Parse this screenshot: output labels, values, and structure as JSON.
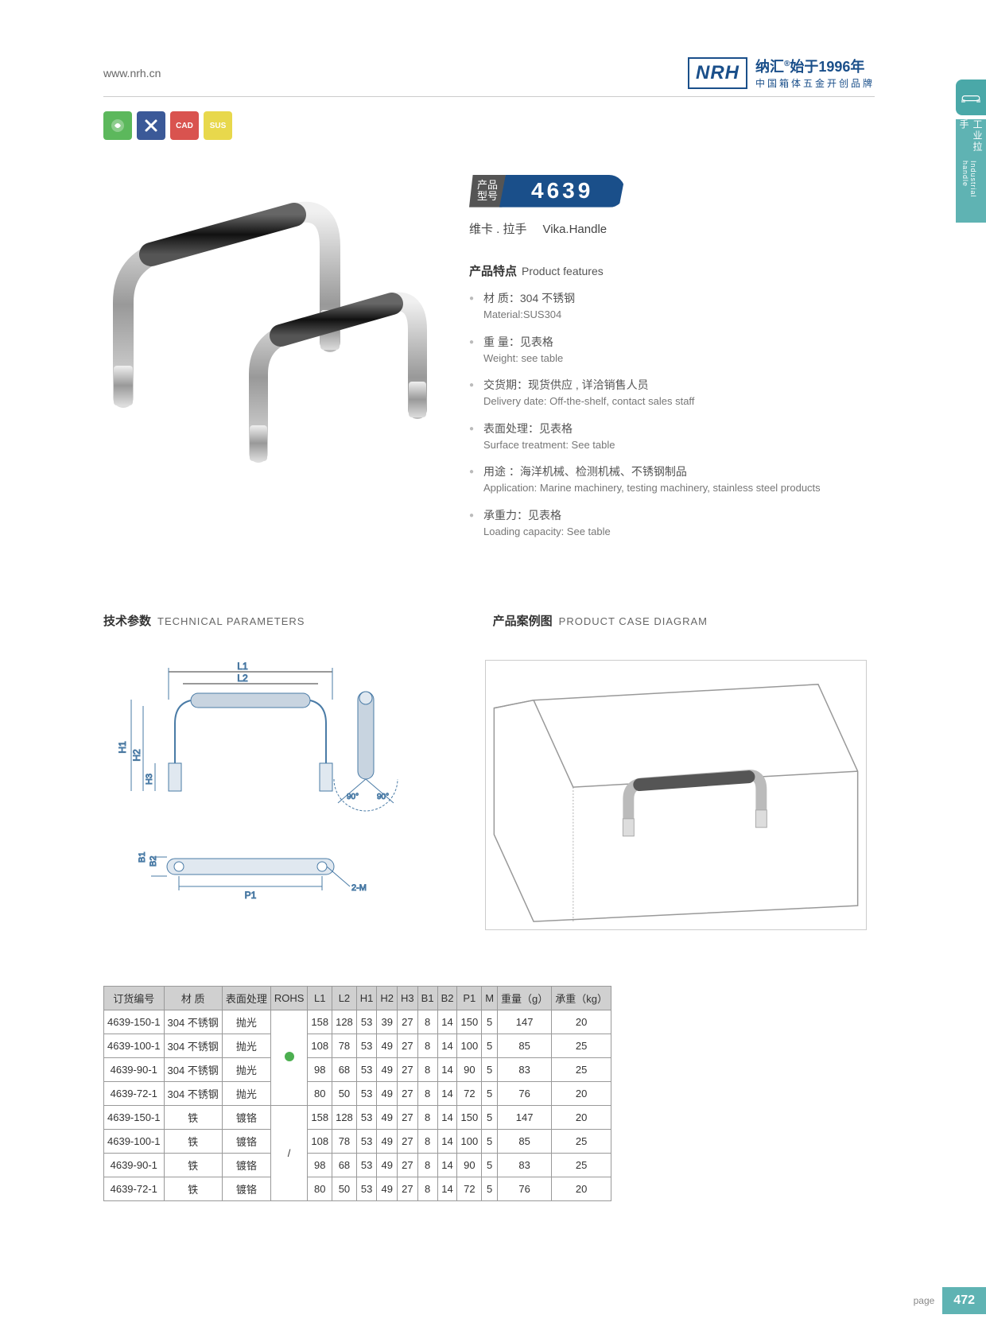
{
  "header": {
    "url": "www.nrh.cn",
    "brand": "NRH",
    "brand_cn": "纳汇",
    "year": "始于1996年",
    "tagline": "中国箱体五金开创品牌"
  },
  "side_tab": {
    "cn": "工业拉手",
    "en": "Industrial handle"
  },
  "icon_badges": [
    "",
    "",
    "CAD",
    "SUS"
  ],
  "model": {
    "label1": "产品",
    "label2": "型号",
    "number": "4639",
    "name_cn": "维卡 . 拉手",
    "name_en": "Vika.Handle"
  },
  "features": {
    "title_cn": "产品特点",
    "title_en": "Product features",
    "items": [
      {
        "cn": "材 质：304 不锈钢",
        "en": "Material:SUS304"
      },
      {
        "cn": "重 量：见表格",
        "en": "Weight: see table"
      },
      {
        "cn": "交货期：现货供应 , 详洽销售人员",
        "en": "Delivery date: Off-the-shelf, contact sales staff"
      },
      {
        "cn": "表面处理：见表格",
        "en": "Surface treatment: See table"
      },
      {
        "cn": "用途 ：海洋机械、检测机械、不锈钢制品",
        "en": "Application: Marine machinery, testing machinery, stainless steel products"
      },
      {
        "cn": "承重力：见表格",
        "en": "Loading capacity: See table"
      }
    ]
  },
  "sections": {
    "tech_cn": "技术参数",
    "tech_en": "TECHNICAL PARAMETERS",
    "case_cn": "产品案例图",
    "case_en": "PRODUCT CASE DIAGRAM"
  },
  "diagram_labels": {
    "L1": "L1",
    "L2": "L2",
    "H1": "H1",
    "H2": "H2",
    "H3": "H3",
    "B1": "B1",
    "B2": "B2",
    "P1": "P1",
    "deg": "90°",
    "hole": "2-M"
  },
  "table": {
    "headers": [
      "订货编号",
      "材 质",
      "表面处理",
      "ROHS",
      "L1",
      "L2",
      "H1",
      "H2",
      "H3",
      "B1",
      "B2",
      "P1",
      "M",
      "重量（g）",
      "承重（kg）"
    ],
    "rohs_groups": [
      "dot",
      "slash"
    ],
    "rows": [
      [
        "4639-150-1",
        "304 不锈钢",
        "抛光",
        "158",
        "128",
        "53",
        "39",
        "27",
        "8",
        "14",
        "150",
        "5",
        "147",
        "20"
      ],
      [
        "4639-100-1",
        "304 不锈钢",
        "抛光",
        "108",
        "78",
        "53",
        "49",
        "27",
        "8",
        "14",
        "100",
        "5",
        "85",
        "25"
      ],
      [
        "4639-90-1",
        "304 不锈钢",
        "抛光",
        "98",
        "68",
        "53",
        "49",
        "27",
        "8",
        "14",
        "90",
        "5",
        "83",
        "25"
      ],
      [
        "4639-72-1",
        "304 不锈钢",
        "抛光",
        "80",
        "50",
        "53",
        "49",
        "27",
        "8",
        "14",
        "72",
        "5",
        "76",
        "20"
      ],
      [
        "4639-150-1",
        "铁",
        "镀铬",
        "158",
        "128",
        "53",
        "49",
        "27",
        "8",
        "14",
        "150",
        "5",
        "147",
        "20"
      ],
      [
        "4639-100-1",
        "铁",
        "镀铬",
        "108",
        "78",
        "53",
        "49",
        "27",
        "8",
        "14",
        "100",
        "5",
        "85",
        "25"
      ],
      [
        "4639-90-1",
        "铁",
        "镀铬",
        "98",
        "68",
        "53",
        "49",
        "27",
        "8",
        "14",
        "90",
        "5",
        "83",
        "25"
      ],
      [
        "4639-72-1",
        "铁",
        "镀铬",
        "80",
        "50",
        "53",
        "49",
        "27",
        "8",
        "14",
        "72",
        "5",
        "76",
        "20"
      ]
    ]
  },
  "footer": {
    "label": "page",
    "num": "472"
  },
  "colors": {
    "brand": "#1a4f8a",
    "teal": "#5fb3b3",
    "header_bg": "#d0d0d0",
    "border": "#999"
  }
}
